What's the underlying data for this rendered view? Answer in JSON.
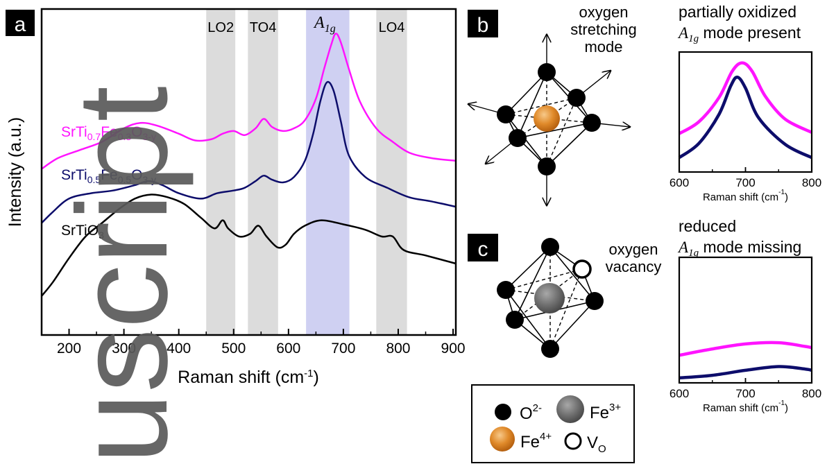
{
  "panels": {
    "a": "a",
    "b": "b",
    "c": "c"
  },
  "watermark": "uscript",
  "chart_data": [
    {
      "panel": "a",
      "type": "line",
      "xlabel_base": "Raman shift (cm",
      "xlabel_exp": "-1",
      "xlabel_close": ")",
      "ylabel": "Intensity (a.u.)",
      "xlim": [
        150,
        905
      ],
      "xticks": [
        200,
        300,
        400,
        500,
        600,
        700,
        800,
        900
      ],
      "y_ticks_shown": false,
      "bands": [
        {
          "label": "LO2",
          "range": [
            450,
            503
          ],
          "color": "#dcdcdc"
        },
        {
          "label": "TO4",
          "range": [
            526,
            581
          ],
          "color": "#dcdcdc"
        },
        {
          "label_main": "A",
          "label_sub": "1g",
          "range": [
            632,
            711
          ],
          "color": "#cfd0f2"
        },
        {
          "label": "LO4",
          "range": [
            760,
            816
          ],
          "color": "#dcdcdc"
        }
      ],
      "series": [
        {
          "name_parts": [
            [
              "SrTi",
              ""
            ],
            [
              "0.7",
              "sub"
            ],
            [
              "Fe",
              ""
            ],
            [
              "0.3",
              "sub"
            ],
            [
              "O",
              ""
            ],
            [
              "3-y",
              "sub"
            ]
          ],
          "color": "#ff14ff",
          "points": [
            [
              150,
              0.55
            ],
            [
              180,
              0.59
            ],
            [
              220,
              0.62
            ],
            [
              260,
              0.65
            ],
            [
              300,
              0.7
            ],
            [
              330,
              0.72
            ],
            [
              360,
              0.71
            ],
            [
              400,
              0.68
            ],
            [
              430,
              0.655
            ],
            [
              460,
              0.66
            ],
            [
              480,
              0.68
            ],
            [
              500,
              0.69
            ],
            [
              520,
              0.675
            ],
            [
              540,
              0.7
            ],
            [
              555,
              0.735
            ],
            [
              570,
              0.705
            ],
            [
              590,
              0.69
            ],
            [
              610,
              0.7
            ],
            [
              630,
              0.73
            ],
            [
              650,
              0.81
            ],
            [
              665,
              0.92
            ],
            [
              678,
              1.01
            ],
            [
              686,
              1.05
            ],
            [
              695,
              1.02
            ],
            [
              710,
              0.92
            ],
            [
              730,
              0.8
            ],
            [
              760,
              0.7
            ],
            [
              790,
              0.65
            ],
            [
              820,
              0.61
            ],
            [
              860,
              0.59
            ],
            [
              905,
              0.58
            ]
          ]
        },
        {
          "name_parts": [
            [
              "SrTi",
              ""
            ],
            [
              "0.5",
              "sub"
            ],
            [
              "Fe",
              ""
            ],
            [
              "0.5",
              "sub"
            ],
            [
              "O",
              ""
            ],
            [
              "3-y",
              "sub"
            ]
          ],
          "color": "#0d0d6b",
          "points": [
            [
              150,
              0.35
            ],
            [
              170,
              0.39
            ],
            [
              200,
              0.44
            ],
            [
              240,
              0.46
            ],
            [
              280,
              0.47
            ],
            [
              320,
              0.49
            ],
            [
              345,
              0.505
            ],
            [
              370,
              0.49
            ],
            [
              400,
              0.46
            ],
            [
              440,
              0.44
            ],
            [
              470,
              0.46
            ],
            [
              500,
              0.47
            ],
            [
              520,
              0.48
            ],
            [
              540,
              0.505
            ],
            [
              555,
              0.525
            ],
            [
              570,
              0.51
            ],
            [
              590,
              0.5
            ],
            [
              610,
              0.52
            ],
            [
              630,
              0.58
            ],
            [
              645,
              0.68
            ],
            [
              658,
              0.8
            ],
            [
              670,
              0.87
            ],
            [
              682,
              0.84
            ],
            [
              695,
              0.73
            ],
            [
              710,
              0.6
            ],
            [
              740,
              0.52
            ],
            [
              780,
              0.48
            ],
            [
              820,
              0.445
            ],
            [
              860,
              0.43
            ],
            [
              905,
              0.41
            ]
          ]
        },
        {
          "name_parts": [
            [
              "SrTiO",
              ""
            ],
            [
              "3",
              "sub"
            ]
          ],
          "color": "#000000",
          "points": [
            [
              150,
              0.08
            ],
            [
              170,
              0.13
            ],
            [
              200,
              0.22
            ],
            [
              230,
              0.3
            ],
            [
              260,
              0.35
            ],
            [
              290,
              0.4
            ],
            [
              320,
              0.44
            ],
            [
              350,
              0.455
            ],
            [
              380,
              0.445
            ],
            [
              410,
              0.42
            ],
            [
              440,
              0.37
            ],
            [
              465,
              0.33
            ],
            [
              480,
              0.36
            ],
            [
              490,
              0.33
            ],
            [
              510,
              0.3
            ],
            [
              530,
              0.31
            ],
            [
              545,
              0.34
            ],
            [
              560,
              0.3
            ],
            [
              580,
              0.26
            ],
            [
              595,
              0.27
            ],
            [
              610,
              0.31
            ],
            [
              630,
              0.34
            ],
            [
              660,
              0.36
            ],
            [
              700,
              0.345
            ],
            [
              740,
              0.325
            ],
            [
              770,
              0.3
            ],
            [
              790,
              0.3
            ],
            [
              810,
              0.25
            ],
            [
              850,
              0.23
            ],
            [
              905,
              0.2
            ]
          ]
        }
      ]
    },
    {
      "panel": "top-right",
      "type": "line",
      "title": "partially oxidized",
      "subtitle_mode": "A",
      "subtitle_sub": "1g",
      "subtitle_rest": " mode present",
      "xlabel_base": "Raman shift (cm",
      "xlabel_exp": "-1",
      "xlabel_close": ")",
      "xlim": [
        600,
        800
      ],
      "xticks": [
        600,
        700,
        800
      ],
      "series": [
        {
          "color": "#ff14ff",
          "points": [
            [
              600,
              0.32
            ],
            [
              630,
              0.42
            ],
            [
              660,
              0.62
            ],
            [
              680,
              0.84
            ],
            [
              695,
              0.91
            ],
            [
              710,
              0.84
            ],
            [
              730,
              0.63
            ],
            [
              760,
              0.44
            ],
            [
              800,
              0.33
            ]
          ]
        },
        {
          "color": "#0d0d6b",
          "points": [
            [
              600,
              0.12
            ],
            [
              630,
              0.24
            ],
            [
              660,
              0.48
            ],
            [
              678,
              0.72
            ],
            [
              688,
              0.79
            ],
            [
              700,
              0.7
            ],
            [
              720,
              0.45
            ],
            [
              760,
              0.23
            ],
            [
              800,
              0.12
            ]
          ]
        }
      ]
    },
    {
      "panel": "bottom-right",
      "type": "line",
      "title": "reduced",
      "subtitle_mode": "A",
      "subtitle_sub": "1g",
      "subtitle_rest": " mode missing",
      "xlabel_base": "Raman shift (cm",
      "xlabel_exp": "-1",
      "xlabel_close": ")",
      "xlim": [
        600,
        800
      ],
      "xticks": [
        600,
        700,
        800
      ],
      "series": [
        {
          "color": "#ff14ff",
          "points": [
            [
              600,
              0.22
            ],
            [
              650,
              0.27
            ],
            [
              700,
              0.31
            ],
            [
              750,
              0.32
            ],
            [
              790,
              0.29
            ],
            [
              800,
              0.28
            ]
          ]
        },
        {
          "color": "#0d0d6b",
          "points": [
            [
              600,
              0.04
            ],
            [
              650,
              0.06
            ],
            [
              700,
              0.1
            ],
            [
              750,
              0.13
            ],
            [
              790,
              0.11
            ],
            [
              800,
              0.1
            ]
          ]
        }
      ]
    }
  ],
  "diagram_b": {
    "label": "oxygen\nstretching\nmode"
  },
  "diagram_c": {
    "vacancy_label": "oxygen\nvacancy"
  },
  "legend": {
    "o2_base": "O",
    "o2_sup": "2-",
    "fe3_base": "Fe",
    "fe3_sup": "3+",
    "fe4_base": "Fe",
    "fe4_sup": "4+",
    "vo_base": "V",
    "vo_sub": "O"
  }
}
